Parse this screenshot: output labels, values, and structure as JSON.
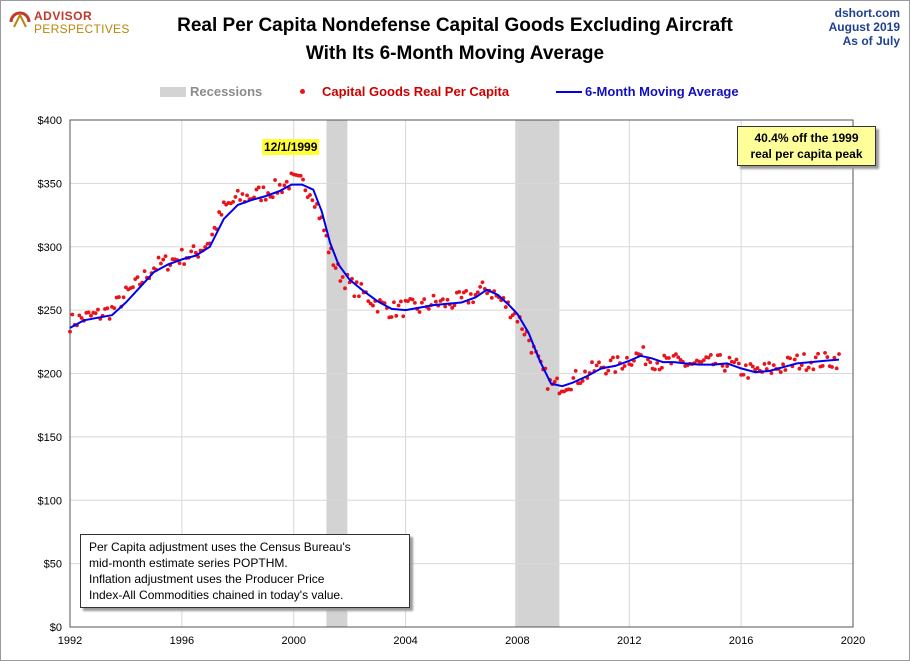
{
  "logo": {
    "line1": "ADVISOR",
    "line2": "PERSPECTIVES"
  },
  "title": {
    "line1": "Real Per Capita Nondefense Capital Goods Excluding Aircraft",
    "line2": "With Its 6-Month Moving Average"
  },
  "source": {
    "line1": "dshort.com",
    "line2": "August  2019",
    "line3": "As  of July"
  },
  "legend": {
    "recessions": "Recessions",
    "series_dots": "Capital Goods Real Per Capita",
    "series_line": "6-Month Moving Average"
  },
  "annotations": {
    "peak_date": "12/1/1999",
    "peak_box_line1": "40.4% off the 1999",
    "peak_box_line2": "real per capita peak",
    "note_line1": "Per Capita adjustment uses the Census Bureau's",
    "note_line2": "mid-month estimate series POPTHM.",
    "note_line3": "Inflation adjustment uses the Producer Price",
    "note_line4": "Index-All Commodities chained in today's value."
  },
  "colors": {
    "dots": "#e8141a",
    "line": "#0000ee",
    "recession": "#d3d3d3",
    "grid": "#d8d8d8"
  },
  "chart_data": {
    "type": "scatter",
    "title": "Real Per Capita Nondefense Capital Goods Excluding Aircraft With Its 6-Month Moving Average",
    "xlim": [
      1992,
      2020
    ],
    "ylim": [
      0,
      400
    ],
    "x_ticks": [
      1992,
      1996,
      2000,
      2004,
      2008,
      2012,
      2016,
      2020
    ],
    "y_ticks": [
      0,
      50,
      100,
      150,
      200,
      250,
      300,
      350,
      400
    ],
    "y_tick_labels": [
      "$0",
      "$50",
      "$100",
      "$150",
      "$200",
      "$250",
      "$300",
      "$350",
      "$400"
    ],
    "grid": true,
    "legend_position": "top",
    "recessions": [
      [
        2001.17,
        2001.92
      ],
      [
        2007.92,
        2009.5
      ]
    ],
    "series": [
      {
        "name": "Capital Goods Real Per Capita",
        "kind": "scatter",
        "anchors": [
          [
            1992.0,
            240
          ],
          [
            1992.5,
            244
          ],
          [
            1993.0,
            246
          ],
          [
            1993.5,
            250
          ],
          [
            1994.0,
            262
          ],
          [
            1994.5,
            272
          ],
          [
            1995.0,
            284
          ],
          [
            1995.5,
            288
          ],
          [
            1996.0,
            292
          ],
          [
            1996.5,
            295
          ],
          [
            1997.0,
            305
          ],
          [
            1997.5,
            330
          ],
          [
            1998.0,
            338
          ],
          [
            1998.5,
            340
          ],
          [
            1999.0,
            343
          ],
          [
            1999.5,
            347
          ],
          [
            1999.92,
            352
          ],
          [
            2000.3,
            350
          ],
          [
            2000.7,
            342
          ],
          [
            2001.0,
            320
          ],
          [
            2001.3,
            295
          ],
          [
            2001.6,
            280
          ],
          [
            2002.0,
            270
          ],
          [
            2002.5,
            263
          ],
          [
            2003.0,
            255
          ],
          [
            2003.5,
            250
          ],
          [
            2004.0,
            252
          ],
          [
            2004.5,
            252
          ],
          [
            2005.0,
            256
          ],
          [
            2005.5,
            255
          ],
          [
            2006.0,
            258
          ],
          [
            2006.5,
            262
          ],
          [
            2006.9,
            268
          ],
          [
            2007.3,
            260
          ],
          [
            2007.7,
            252
          ],
          [
            2008.0,
            245
          ],
          [
            2008.4,
            228
          ],
          [
            2008.8,
            205
          ],
          [
            2009.2,
            190
          ],
          [
            2009.6,
            191
          ],
          [
            2010.0,
            195
          ],
          [
            2010.5,
            200
          ],
          [
            2011.0,
            206
          ],
          [
            2011.5,
            206
          ],
          [
            2012.0,
            212
          ],
          [
            2012.4,
            215
          ],
          [
            2012.8,
            211
          ],
          [
            2013.2,
            208
          ],
          [
            2013.6,
            209
          ],
          [
            2014.0,
            208
          ],
          [
            2014.5,
            207
          ],
          [
            2015.0,
            208
          ],
          [
            2015.5,
            208
          ],
          [
            2016.0,
            203
          ],
          [
            2016.5,
            201
          ],
          [
            2017.0,
            203
          ],
          [
            2017.5,
            206
          ],
          [
            2018.0,
            209
          ],
          [
            2018.5,
            210
          ],
          [
            2019.0,
            210
          ],
          [
            2019.5,
            211
          ]
        ]
      },
      {
        "name": "6-Month Moving Average",
        "kind": "line",
        "points": [
          [
            1992.0,
            236
          ],
          [
            1992.5,
            242
          ],
          [
            1993.0,
            244
          ],
          [
            1993.5,
            246
          ],
          [
            1994.0,
            256
          ],
          [
            1994.5,
            268
          ],
          [
            1995.0,
            280
          ],
          [
            1995.5,
            286
          ],
          [
            1996.0,
            290
          ],
          [
            1996.5,
            293
          ],
          [
            1997.0,
            300
          ],
          [
            1997.5,
            322
          ],
          [
            1998.0,
            333
          ],
          [
            1998.5,
            337
          ],
          [
            1999.0,
            340
          ],
          [
            1999.5,
            344
          ],
          [
            1999.92,
            349
          ],
          [
            2000.3,
            349
          ],
          [
            2000.7,
            345
          ],
          [
            2001.0,
            328
          ],
          [
            2001.3,
            303
          ],
          [
            2001.6,
            286
          ],
          [
            2002.0,
            274
          ],
          [
            2002.5,
            265
          ],
          [
            2003.0,
            257
          ],
          [
            2003.5,
            251
          ],
          [
            2004.0,
            250
          ],
          [
            2004.5,
            252
          ],
          [
            2005.0,
            254
          ],
          [
            2005.5,
            255
          ],
          [
            2006.0,
            256
          ],
          [
            2006.5,
            260
          ],
          [
            2006.9,
            266
          ],
          [
            2007.3,
            262
          ],
          [
            2007.7,
            254
          ],
          [
            2008.0,
            247
          ],
          [
            2008.4,
            232
          ],
          [
            2008.8,
            210
          ],
          [
            2009.2,
            192
          ],
          [
            2009.6,
            190
          ],
          [
            2010.0,
            193
          ],
          [
            2010.5,
            198
          ],
          [
            2011.0,
            204
          ],
          [
            2011.5,
            206
          ],
          [
            2012.0,
            210
          ],
          [
            2012.4,
            214
          ],
          [
            2012.8,
            212
          ],
          [
            2013.2,
            209
          ],
          [
            2013.6,
            209
          ],
          [
            2014.0,
            208
          ],
          [
            2014.5,
            207
          ],
          [
            2015.0,
            207
          ],
          [
            2015.5,
            208
          ],
          [
            2016.0,
            204
          ],
          [
            2016.5,
            201
          ],
          [
            2017.0,
            202
          ],
          [
            2017.5,
            205
          ],
          [
            2018.0,
            208
          ],
          [
            2018.5,
            209
          ],
          [
            2019.0,
            210
          ],
          [
            2019.5,
            211
          ]
        ]
      }
    ]
  }
}
